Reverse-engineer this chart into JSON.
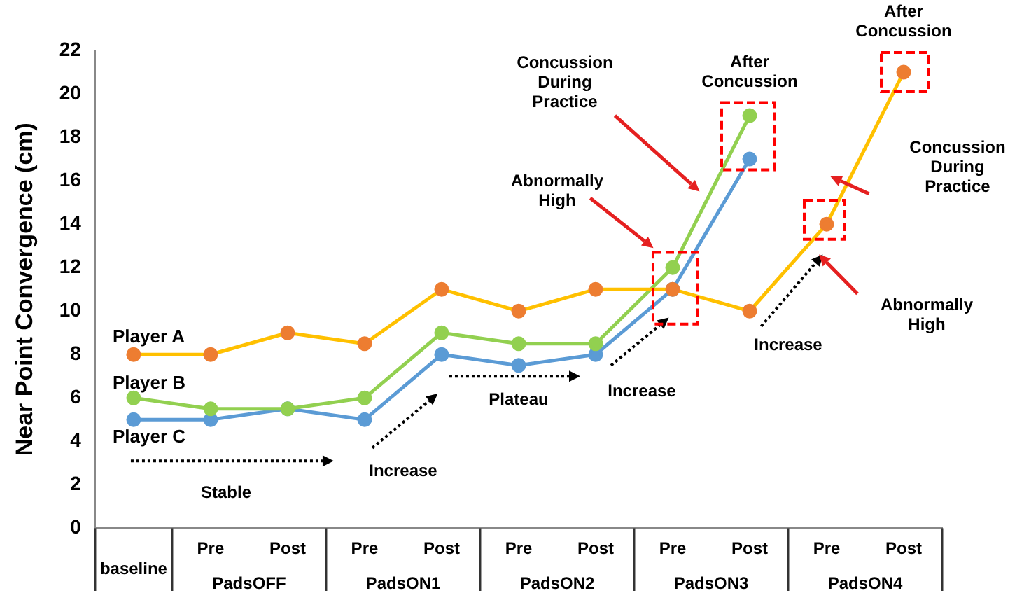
{
  "chart_data": {
    "type": "line",
    "ylabel": "Near Point Convergence (cm)",
    "categories": [
      "baseline",
      "Pre",
      "Post",
      "Pre",
      "Post",
      "Pre",
      "Post",
      "Pre",
      "Post",
      "Pre",
      "Post"
    ],
    "series": [
      {
        "name": "Player A",
        "color": "#ffc000",
        "colors": [
          "#ed7d31",
          "#ed7d31",
          "#ed7d31",
          "#ed7d31",
          "#ed7d31",
          "#ed7d31",
          "#ed7d31",
          "#ed7d31",
          "#ed7d31",
          "#ed7d31",
          "#ed7d31"
        ],
        "values": [
          8,
          8,
          9,
          8.5,
          11,
          10,
          11,
          11,
          10,
          14,
          21
        ]
      },
      {
        "name": "Player B",
        "color": "#92d050",
        "values": [
          6,
          5.5,
          5.5,
          6,
          9,
          8.5,
          8.5,
          12,
          19,
          null,
          null
        ]
      },
      {
        "name": "Player C",
        "color": "#5b9bd5",
        "values": [
          5,
          5,
          5.5,
          5,
          8,
          7.5,
          8,
          11,
          17,
          null,
          null
        ]
      }
    ],
    "ylim": [
      0,
      22
    ],
    "yticks": [
      0,
      2,
      4,
      6,
      8,
      10,
      12,
      14,
      16,
      18,
      20,
      22
    ],
    "grid": false,
    "legend": false,
    "marker": "circle",
    "line_style": "solid",
    "annotations": [
      "PadsOFF",
      "PadsON1",
      "PadsON2",
      "PadsON3",
      "PadsON4",
      "Stable",
      "Increase",
      "Plateau",
      "Increase",
      "Increase",
      "Abnormally High",
      "Concussion During Practice",
      "After Concussion",
      "After Concussion",
      "Concussion During Practice",
      "Abnormally High"
    ]
  }
}
